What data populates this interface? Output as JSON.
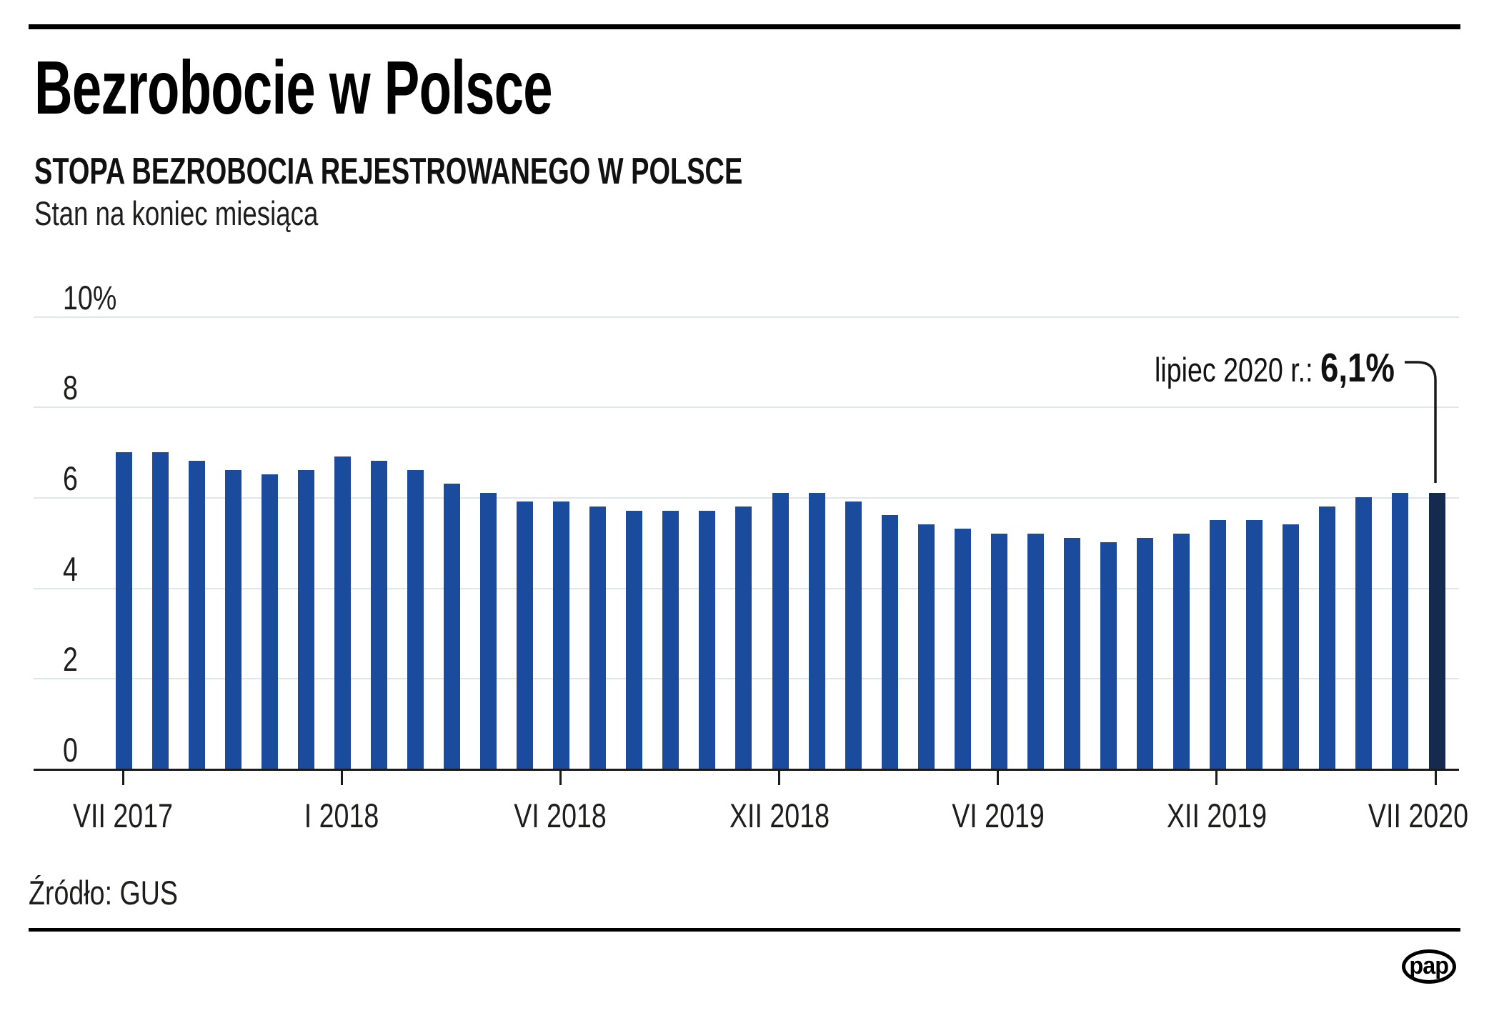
{
  "header": {
    "title": "Bezrobocie w Polsce",
    "subtitle": "STOPA BEZROBOCIA REJESTROWANEGO W POLSCE",
    "note": "Stan na koniec miesiąca"
  },
  "annotation": {
    "label": "lipiec 2020 r.: ",
    "value": "6,1%"
  },
  "source": "Źródło: GUS",
  "logo": "pap",
  "chart_data": {
    "type": "bar",
    "title": "Stopa bezrobocia rejestrowanego w Polsce",
    "xlabel": "",
    "ylabel": "%",
    "ylim": [
      0,
      10
    ],
    "grid": true,
    "yticks": [
      0,
      2,
      4,
      6,
      8,
      10
    ],
    "ytick_labels": [
      "0",
      "2",
      "4",
      "6",
      "8",
      "10%"
    ],
    "xtick_labels": [
      "VII 2017",
      "I 2018",
      "VI 2018",
      "XII 2018",
      "VI 2019",
      "XII 2019",
      "VII 2020"
    ],
    "bar_color": "#1a4b9c",
    "highlight_color": "#16294e",
    "highlight_index": 36,
    "categories": [
      "VII 2017",
      "VIII 2017",
      "IX 2017",
      "X 2017",
      "XI 2017",
      "XII 2017",
      "I 2018",
      "II 2018",
      "III 2018",
      "IV 2018",
      "V 2018",
      "VI 2018",
      "VII 2018",
      "VIII 2018",
      "IX 2018",
      "X 2018",
      "XI 2018",
      "XII 2018",
      "I 2019",
      "II 2019",
      "III 2019",
      "IV 2019",
      "V 2019",
      "VI 2019",
      "VII 2019",
      "VIII 2019",
      "IX 2019",
      "X 2019",
      "XI 2019",
      "XII 2019",
      "I 2020",
      "II 2020",
      "III 2020",
      "IV 2020",
      "V 2020",
      "VI 2020",
      "VII 2020"
    ],
    "values": [
      7.0,
      7.0,
      6.8,
      6.6,
      6.5,
      6.6,
      6.9,
      6.8,
      6.6,
      6.3,
      6.1,
      5.9,
      5.9,
      5.8,
      5.7,
      5.7,
      5.7,
      5.8,
      6.1,
      6.1,
      5.9,
      5.6,
      5.4,
      5.3,
      5.2,
      5.2,
      5.1,
      5.0,
      5.1,
      5.2,
      5.5,
      5.5,
      5.4,
      5.8,
      6.0,
      6.1,
      6.1
    ]
  }
}
